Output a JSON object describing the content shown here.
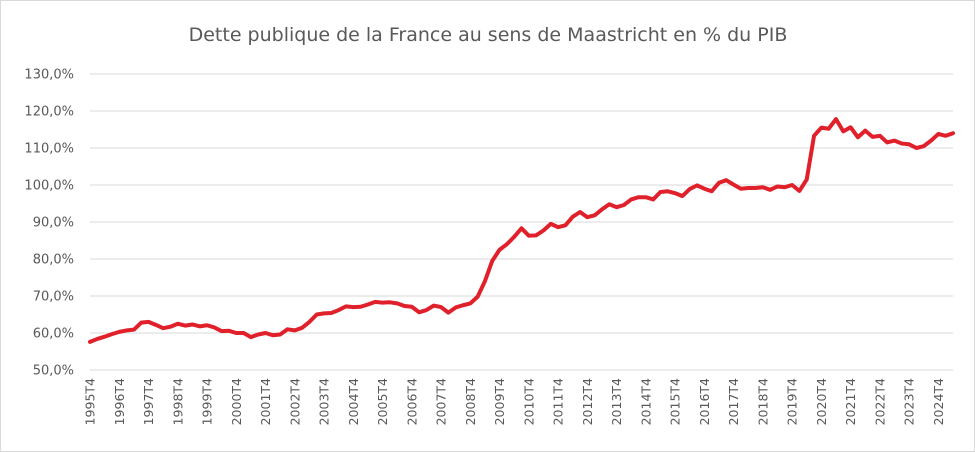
{
  "chart_data": {
    "type": "line",
    "title": "Dette publique de la France au sens de Maastricht en % du PIB",
    "xlabel": "",
    "ylabel": "",
    "ylim": [
      50,
      130
    ],
    "ytick_values": [
      50,
      60,
      70,
      80,
      90,
      100,
      110,
      120,
      130
    ],
    "ytick_labels": [
      "50,0%",
      "60,0%",
      "70,0%",
      "80,0%",
      "90,0%",
      "100,0%",
      "110,0%",
      "120,0%",
      "130,0%"
    ],
    "xtick_labels": [
      "1995T4",
      "1996T4",
      "1997T4",
      "1998T4",
      "1999T4",
      "2000T4",
      "2001T4",
      "2002T4",
      "2003T4",
      "2004T4",
      "2005T4",
      "2006T4",
      "2007T4",
      "2008T4",
      "2009T4",
      "2010T4",
      "2011T4",
      "2012T4",
      "2013T4",
      "2014T4",
      "2015T4",
      "2016T4",
      "2017T4",
      "2018T4",
      "2019T4",
      "2020T4",
      "2021T4",
      "2022T4",
      "2023T4",
      "2024T4"
    ],
    "grid": "horizontal",
    "legend": "none",
    "line_color": "#e0202a",
    "grid_color": "#d9d9d9",
    "text_color": "#595959",
    "series": [
      {
        "start": "1995T4",
        "frequency": "quarterly",
        "values": [
          57.6,
          58.4,
          59.0,
          59.7,
          60.3,
          60.7,
          60.9,
          62.8,
          63.0,
          62.2,
          61.3,
          61.7,
          62.5,
          62.0,
          62.3,
          61.8,
          62.1,
          61.5,
          60.5,
          60.6,
          60.0,
          60.0,
          58.9,
          59.6,
          60.0,
          59.4,
          59.6,
          61.0,
          60.7,
          61.4,
          63.0,
          65.0,
          65.3,
          65.4,
          66.2,
          67.2,
          67.0,
          67.1,
          67.7,
          68.4,
          68.2,
          68.3,
          68.0,
          67.3,
          67.1,
          65.6,
          66.2,
          67.4,
          67.0,
          65.5,
          66.9,
          67.5,
          68.0,
          69.8,
          74.0,
          79.5,
          82.5,
          84.0,
          86.0,
          88.3,
          86.3,
          86.4,
          87.7,
          89.5,
          88.6,
          89.1,
          91.4,
          92.7,
          91.3,
          91.8,
          93.4,
          94.8,
          94.0,
          94.6,
          96.1,
          96.7,
          96.7,
          96.1,
          98.1,
          98.3,
          97.8,
          97.0,
          98.9,
          99.9,
          99.0,
          98.3,
          100.6,
          101.3,
          100.1,
          99.0,
          99.2,
          99.2,
          99.4,
          98.7,
          99.6,
          99.4,
          100.0,
          98.4,
          101.5,
          113.3,
          115.5,
          115.2,
          117.8,
          114.5,
          115.6,
          112.9,
          114.7,
          113.0,
          113.3,
          111.5,
          112.0,
          111.2,
          111.0,
          110.0,
          110.5,
          112.0,
          113.8,
          113.3,
          114.0
        ]
      }
    ]
  }
}
